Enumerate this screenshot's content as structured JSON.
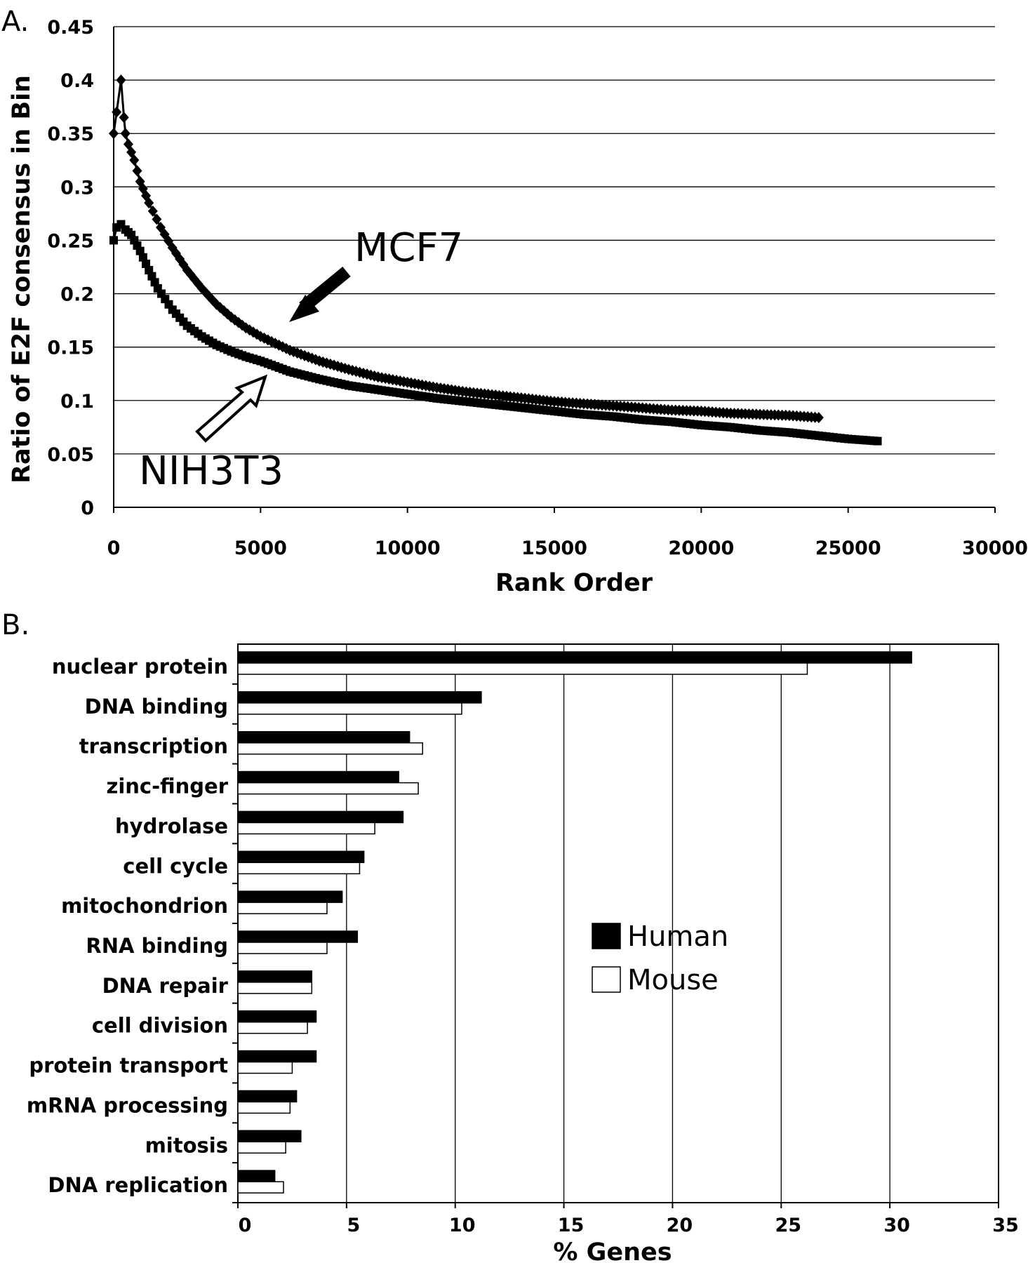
{
  "panel_a_label": "A.",
  "panel_b_label": "B.",
  "chart_data": [
    {
      "type": "scatter",
      "xlabel": "Rank Order",
      "ylabel": "Ratio of E2F consensus in Bin",
      "xlim": [
        0,
        30000
      ],
      "ylim": [
        0,
        0.45
      ],
      "x_ticks": [
        "0",
        "5000",
        "10000",
        "15000",
        "20000",
        "25000",
        "30000"
      ],
      "y_ticks": [
        "0",
        "0.05",
        "0.1",
        "0.15",
        "0.2",
        "0.25",
        "0.3",
        "0.35",
        "0.4",
        "0.45"
      ],
      "grid": "horizontal",
      "annotations": [
        {
          "text": "MCF7",
          "arrow": "filled",
          "points_to": [
            6000,
            0.17
          ]
        },
        {
          "text": "NIH3T3",
          "arrow": "open",
          "points_to": [
            5000,
            0.12
          ]
        }
      ],
      "series": [
        {
          "name": "MCF7",
          "marker": "diamond",
          "x": [
            0,
            100,
            250,
            350,
            400,
            500,
            700,
            900,
            1200,
            1600,
            2000,
            2500,
            3000,
            3500,
            4000,
            4500,
            5000,
            6000,
            7000,
            8000,
            9000,
            10000,
            11000,
            12000,
            13000,
            14000,
            15000,
            16000,
            17000,
            18000,
            19000,
            20000,
            21000,
            22000,
            23000,
            24000
          ],
          "y": [
            0.35,
            0.37,
            0.4,
            0.365,
            0.35,
            0.34,
            0.325,
            0.305,
            0.285,
            0.262,
            0.243,
            0.222,
            0.205,
            0.19,
            0.178,
            0.168,
            0.16,
            0.147,
            0.137,
            0.129,
            0.122,
            0.117,
            0.112,
            0.108,
            0.105,
            0.102,
            0.099,
            0.097,
            0.095,
            0.093,
            0.091,
            0.09,
            0.088,
            0.087,
            0.086,
            0.084
          ]
        },
        {
          "name": "NIH3T3",
          "marker": "square",
          "x": [
            0,
            100,
            250,
            400,
            600,
            900,
            1200,
            1500,
            2000,
            2500,
            3000,
            3500,
            4000,
            4500,
            5000,
            6000,
            7000,
            8000,
            9000,
            10000,
            11000,
            12000,
            13000,
            14000,
            15000,
            16000,
            17000,
            18000,
            19000,
            20000,
            21000,
            22000,
            23000,
            24000,
            25000,
            26000
          ],
          "y": [
            0.25,
            0.262,
            0.265,
            0.26,
            0.255,
            0.24,
            0.222,
            0.205,
            0.185,
            0.17,
            0.16,
            0.152,
            0.146,
            0.141,
            0.137,
            0.127,
            0.12,
            0.114,
            0.11,
            0.106,
            0.102,
            0.099,
            0.096,
            0.093,
            0.09,
            0.087,
            0.085,
            0.082,
            0.08,
            0.077,
            0.075,
            0.072,
            0.07,
            0.067,
            0.064,
            0.062
          ]
        }
      ]
    },
    {
      "type": "bar",
      "orientation": "horizontal",
      "xlabel": "% Genes",
      "xlim": [
        0,
        35
      ],
      "x_ticks": [
        "0",
        "5",
        "10",
        "15",
        "20",
        "25",
        "30",
        "35"
      ],
      "grid": "vertical",
      "legend_position": "center-right",
      "categories": [
        "nuclear protein",
        "DNA binding",
        "transcription",
        "zinc-finger",
        "hydrolase",
        "cell cycle",
        "mitochondrion",
        "RNA binding",
        "DNA repair",
        "cell division",
        "protein transport",
        "mRNA processing",
        "mitosis",
        "DNA replication"
      ],
      "series": [
        {
          "name": "Human",
          "color": "#000000",
          "values": [
            31.0,
            11.2,
            7.9,
            7.4,
            7.6,
            5.8,
            4.8,
            5.5,
            3.4,
            3.6,
            3.6,
            2.7,
            2.9,
            1.7
          ]
        },
        {
          "name": "Mouse",
          "color": "#ffffff",
          "values": [
            26.2,
            10.3,
            8.5,
            8.3,
            6.3,
            5.6,
            4.1,
            4.1,
            3.4,
            3.2,
            2.5,
            2.4,
            2.2,
            2.1
          ]
        }
      ]
    }
  ]
}
